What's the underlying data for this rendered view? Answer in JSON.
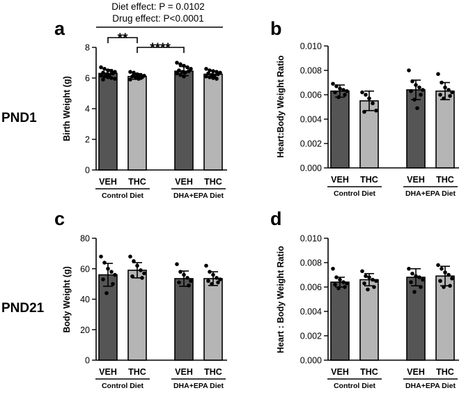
{
  "figure": {
    "row_labels": [
      "PND1",
      "PND21"
    ],
    "stats": {
      "diet_effect": "Diet effect: P = 0.0102",
      "drug_effect": "Drug effect: P<0.0001",
      "bracket_1": "**",
      "bracket_2": "****"
    }
  },
  "colors": {
    "veh_bar": "#555555",
    "thc_bar": "#b5b5b5",
    "ink": "#000000"
  },
  "chart_data": [
    {
      "type": "bar",
      "panel": "a",
      "ylabel": "Birth Weight (g)",
      "ylim": [
        0,
        8
      ],
      "yticks": [
        "0",
        "2",
        "4",
        "6",
        "8"
      ],
      "ytick_values": [
        0,
        2,
        4,
        6,
        8
      ],
      "categories": [
        "VEH",
        "THC",
        "VEH",
        "THC"
      ],
      "groups": [
        "Control Diet",
        "DHA+EPA Diet"
      ],
      "values": [
        6.3,
        6.1,
        6.45,
        6.25
      ],
      "errors": [
        0.25,
        0.18,
        0.3,
        0.22
      ],
      "points": [
        [
          6.7,
          6.6,
          6.5,
          6.45,
          6.4,
          6.35,
          6.3,
          6.25,
          6.2,
          6.15,
          6.1,
          6.05,
          6.0,
          5.95,
          5.9
        ],
        [
          6.4,
          6.35,
          6.25,
          6.2,
          6.15,
          6.1,
          6.05,
          6.0,
          5.95,
          5.9,
          6.2,
          6.1,
          6.0
        ],
        [
          7.0,
          6.9,
          6.8,
          6.7,
          6.6,
          6.5,
          6.45,
          6.4,
          6.35,
          6.3,
          6.2,
          6.1
        ],
        [
          6.6,
          6.5,
          6.45,
          6.4,
          6.35,
          6.3,
          6.25,
          6.2,
          6.15,
          6.1,
          6.05,
          6.0,
          5.95
        ]
      ]
    },
    {
      "type": "bar",
      "panel": "b",
      "ylabel": "Heart:Body Weight Ratio",
      "ylim": [
        0,
        0.01
      ],
      "yticks": [
        "0.000",
        "0.002",
        "0.004",
        "0.006",
        "0.008",
        "0.010"
      ],
      "ytick_values": [
        0,
        0.002,
        0.004,
        0.006,
        0.008,
        0.01
      ],
      "categories": [
        "VEH",
        "THC",
        "VEH",
        "THC"
      ],
      "groups": [
        "Control Diet",
        "DHA+EPA Diet"
      ],
      "values": [
        0.0063,
        0.0055,
        0.0064,
        0.0063
      ],
      "errors": [
        0.0005,
        0.0008,
        0.0008,
        0.0007
      ],
      "points": [
        [
          0.0069,
          0.0067,
          0.0065,
          0.0064,
          0.0063,
          0.0062,
          0.006,
          0.0058
        ],
        [
          0.0062,
          0.006,
          0.0057,
          0.0053,
          0.0047,
          0.0046
        ],
        [
          0.008,
          0.0071,
          0.0068,
          0.0066,
          0.0064,
          0.0063,
          0.006,
          0.0056,
          0.0049
        ],
        [
          0.0077,
          0.007,
          0.0066,
          0.0064,
          0.0062,
          0.006,
          0.0059,
          0.0057
        ]
      ]
    },
    {
      "type": "bar",
      "panel": "c",
      "ylabel": "Body Weight (g)",
      "ylim": [
        0,
        80
      ],
      "yticks": [
        "0",
        "20",
        "40",
        "60",
        "80"
      ],
      "ytick_values": [
        0,
        20,
        40,
        60,
        80
      ],
      "categories": [
        "VEH",
        "THC",
        "VEH",
        "THC"
      ],
      "groups": [
        "Control Diet",
        "DHA+EPA Diet"
      ],
      "values": [
        56,
        59,
        53.5,
        53.5
      ],
      "errors": [
        7.5,
        5,
        5,
        4.5
      ],
      "points": [
        [
          68,
          64,
          60,
          58,
          56,
          53,
          50,
          44
        ],
        [
          68,
          65,
          62,
          59,
          57,
          55,
          54
        ],
        [
          63,
          58,
          56,
          54,
          52,
          51,
          49
        ],
        [
          62,
          58,
          56,
          54,
          53,
          52,
          51,
          50
        ]
      ]
    },
    {
      "type": "bar",
      "panel": "d",
      "ylabel": "Heart : Body Weight Ratio",
      "ylim": [
        0,
        0.01
      ],
      "yticks": [
        "0.000",
        "0.002",
        "0.004",
        "0.006",
        "0.008",
        "0.010"
      ],
      "ytick_values": [
        0,
        0.002,
        0.004,
        0.006,
        0.008,
        0.01
      ],
      "categories": [
        "VEH",
        "THC",
        "VEH",
        "THC"
      ],
      "groups": [
        "Control Diet",
        "DHA+EPA Diet"
      ],
      "values": [
        0.0064,
        0.0066,
        0.0068,
        0.0069
      ],
      "errors": [
        0.0004,
        0.0005,
        0.0007,
        0.0008
      ],
      "points": [
        [
          0.0075,
          0.0068,
          0.0066,
          0.0064,
          0.0063,
          0.0062,
          0.006,
          0.0059
        ],
        [
          0.0073,
          0.0069,
          0.0068,
          0.0066,
          0.0065,
          0.0063,
          0.006,
          0.0058
        ],
        [
          0.0075,
          0.0071,
          0.0069,
          0.0068,
          0.0066,
          0.0064,
          0.006,
          0.0056
        ],
        [
          0.0078,
          0.0075,
          0.0072,
          0.007,
          0.0067,
          0.0065,
          0.0061,
          0.006
        ]
      ]
    }
  ]
}
